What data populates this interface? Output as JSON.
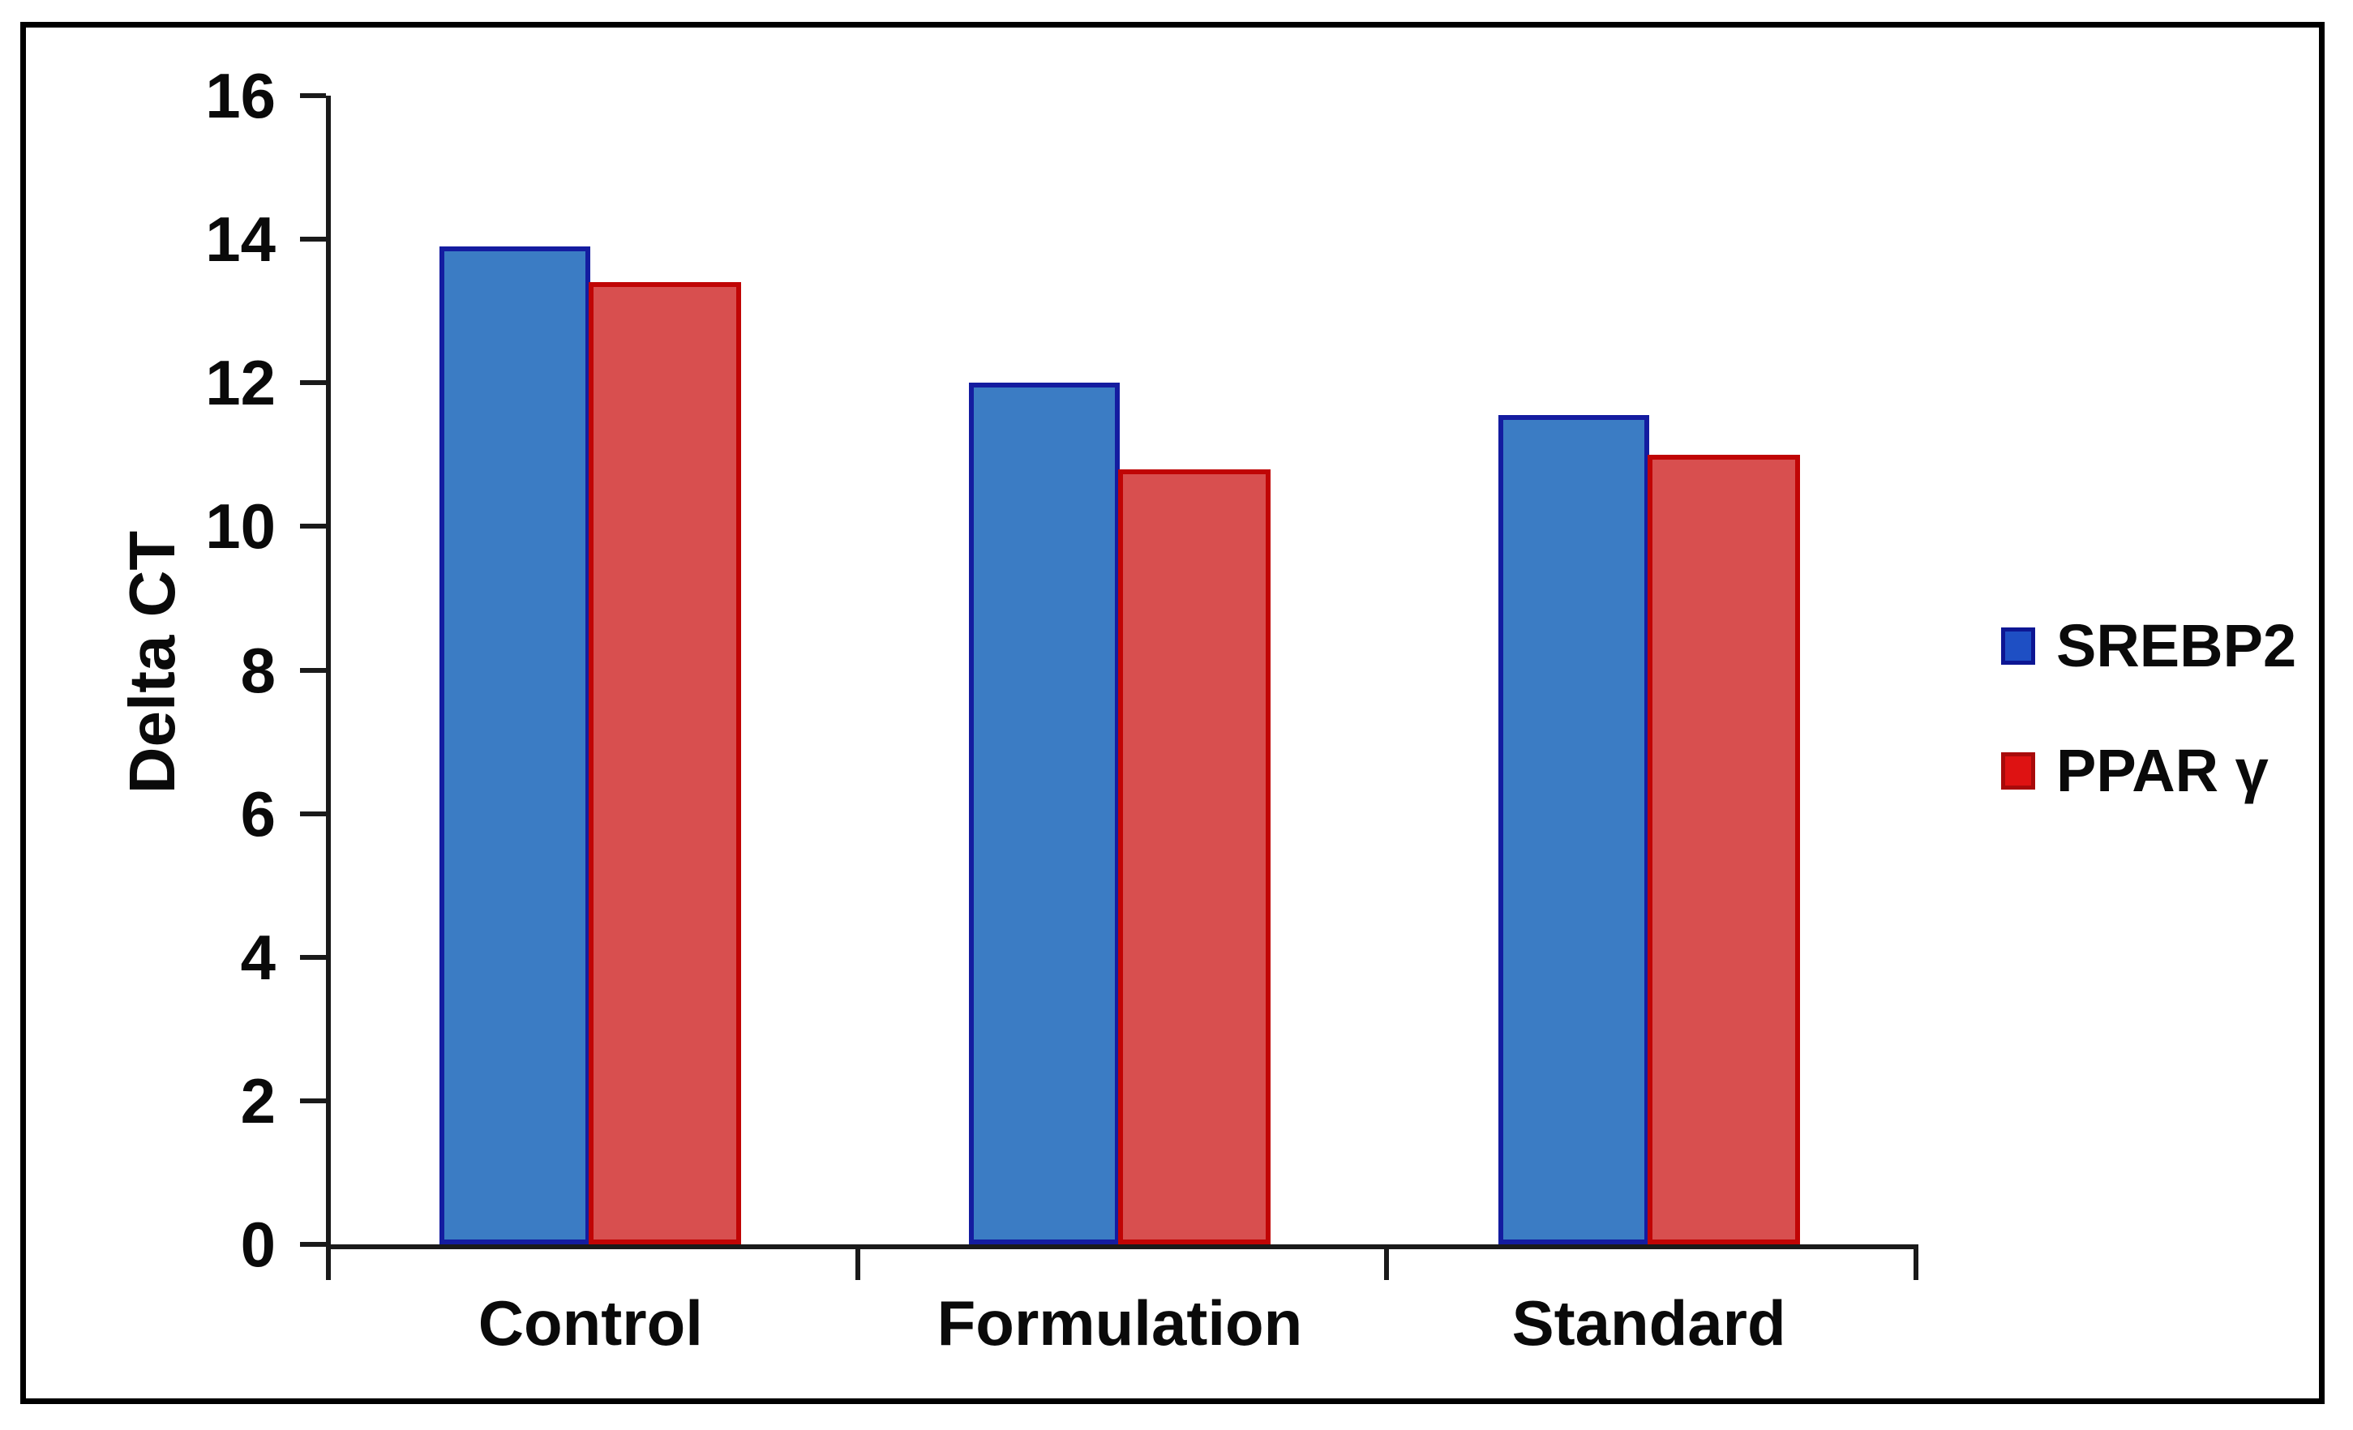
{
  "chart_data": {
    "type": "bar",
    "title": "",
    "ylabel": "Delta CT",
    "xlabel": "",
    "categories": [
      "Control",
      "Formulation",
      "Standard"
    ],
    "series": [
      {
        "name": "SREBP2",
        "fill": "#3B7CC4",
        "border": "#141CA0",
        "legend_fill": "#1E4FC4",
        "legend_border": "#0D1693",
        "values": [
          13.9,
          12.0,
          11.55
        ]
      },
      {
        "name": "PPAR γ",
        "fill": "#D84F4F",
        "border": "#C00505",
        "legend_fill": "#DE1212",
        "legend_border": "#A80A0A",
        "values": [
          13.4,
          10.8,
          11.0
        ]
      }
    ],
    "ylim": [
      0,
      16
    ],
    "yticks": [
      0,
      2,
      4,
      6,
      8,
      10,
      12,
      14,
      16
    ],
    "grid": false,
    "legend_position": "right",
    "frame_color": "#000000",
    "axis_color": "#1a1a1a"
  }
}
